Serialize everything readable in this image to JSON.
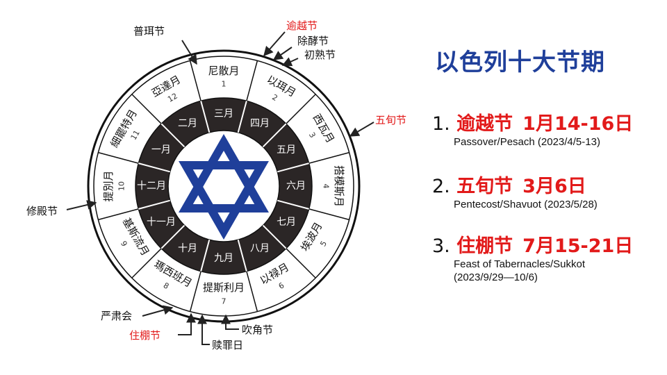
{
  "title": "以色列十大节期",
  "colors": {
    "title": "#1f3f9a",
    "accent": "#e21a1a",
    "ring_dark": "#2b2626",
    "star": "#1f3f9a"
  },
  "wheel": {
    "outer_months": [
      {
        "name": "尼散月",
        "num": "1"
      },
      {
        "name": "以珥月",
        "num": "2"
      },
      {
        "name": "西瓦月",
        "num": "3"
      },
      {
        "name": "搭模斯月",
        "num": "4"
      },
      {
        "name": "埃波月",
        "num": "5"
      },
      {
        "name": "以禄月",
        "num": "6"
      },
      {
        "name": "提斯利月",
        "num": "7"
      },
      {
        "name": "瑪西班月",
        "num": "8"
      },
      {
        "name": "基斯流月",
        "num": "9"
      },
      {
        "name": "提別月",
        "num": "10"
      },
      {
        "name": "細罷特月",
        "num": "11"
      },
      {
        "name": "亞達月",
        "num": "12"
      }
    ],
    "inner_months": [
      "四月",
      "五月",
      "六月",
      "七月",
      "八月",
      "九月",
      "十月",
      "十一月",
      "十二月",
      "一月",
      "二月",
      "三月"
    ],
    "center_icon": "star-of-david-icon"
  },
  "feast_labels": {
    "purim": "普珥节",
    "passover": "逾越节",
    "unleavened": "除酵节",
    "firstfruits": "初熟节",
    "pentecost": "五旬节",
    "dedication": "修殿节",
    "assembly": "严肃会",
    "tabernacles": "住棚节",
    "atonement": "赎罪日",
    "trumpets": "吹角节"
  },
  "feasts": [
    {
      "num": "1.",
      "name": "逾越节",
      "date": "1月14-16日",
      "en": [
        "Passover/Pesach (2023/4/5-13)"
      ]
    },
    {
      "num": "2.",
      "name": "五旬节",
      "date": "3月6日",
      "en": [
        "Pentecost/Shavuot (2023/5/28)"
      ]
    },
    {
      "num": "3.",
      "name": "住棚节",
      "date": "7月15-21日",
      "en": [
        "Feast of Tabernacles/Sukkot",
        "(2023/9/29—10/6)"
      ]
    }
  ]
}
